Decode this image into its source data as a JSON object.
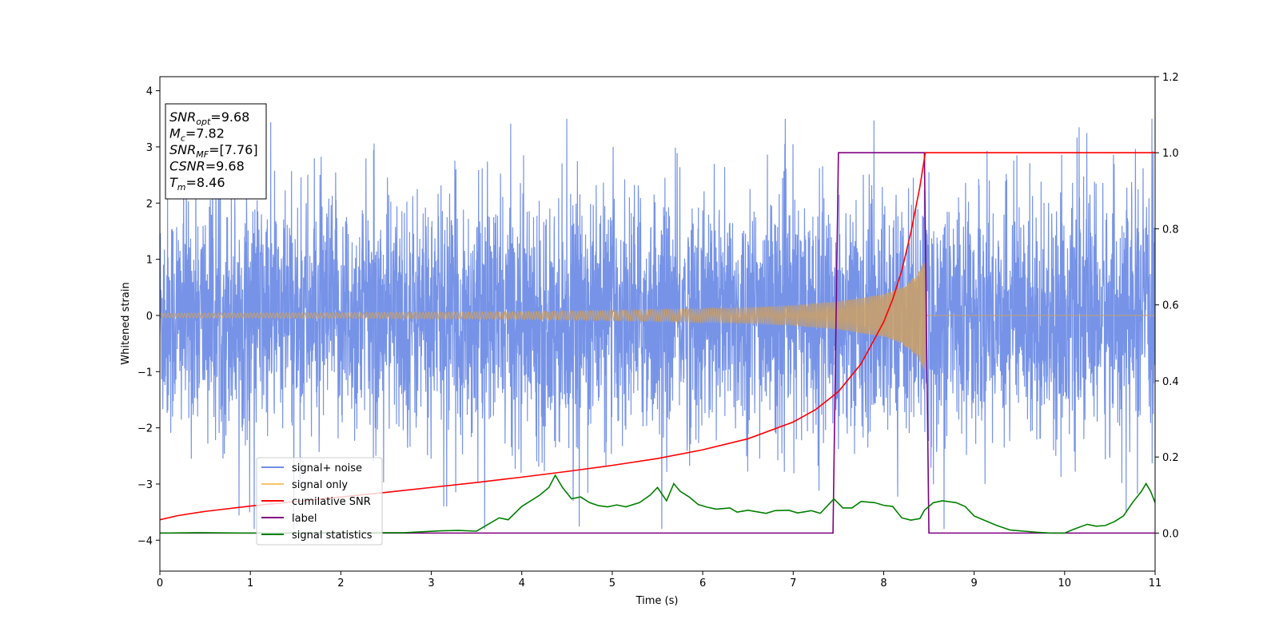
{
  "chart_data": {
    "type": "line",
    "xlabel": "Time (s)",
    "ylabel": "Whitened strain",
    "xlim": [
      0,
      11
    ],
    "ylim_left": [
      -4.55,
      4.25
    ],
    "ylim_right": [
      -0.1,
      1.2
    ],
    "x_ticks": [
      "0",
      "1",
      "2",
      "3",
      "4",
      "5",
      "6",
      "7",
      "8",
      "9",
      "10",
      "11"
    ],
    "y_left_ticks": [
      "4",
      "3",
      "2",
      "1",
      "0",
      "−1",
      "−2",
      "−3",
      "−4"
    ],
    "y_left_tick_values": [
      4,
      3,
      2,
      1,
      0,
      -1,
      -2,
      -3,
      -4
    ],
    "y_right_ticks": [
      "1.2",
      "1.0",
      "0.8",
      "0.6",
      "0.4",
      "0.2",
      "0.0"
    ],
    "y_right_tick_values": [
      1.2,
      1.0,
      0.8,
      0.6,
      0.4,
      0.2,
      0.0
    ],
    "annotation": {
      "lines": [
        {
          "label": "SNR",
          "sub": "opt",
          "value": "=9.68"
        },
        {
          "label": "M",
          "sub": "c",
          "value": "=7.82"
        },
        {
          "label": "SNR",
          "sub": "MF",
          "value": "=[7.76]"
        },
        {
          "label": "CSNR",
          "sub": "",
          "value": "=9.68"
        },
        {
          "label": "T",
          "sub": "m",
          "value": "=8.46"
        }
      ]
    },
    "legend": {
      "placement": "lower-left",
      "entries": [
        {
          "name": "signal+ noise",
          "color": "#6f8de6"
        },
        {
          "name": "signal only",
          "color": "#f5c46a"
        },
        {
          "name": "cumilative SNR",
          "color": "#ff0000"
        },
        {
          "name": "label",
          "color": "#800080"
        },
        {
          "name": "signal statistics",
          "color": "#008000"
        }
      ]
    },
    "series": [
      {
        "name": "signal+ noise",
        "axis": "left",
        "description_only_style": "dense noise",
        "color": "#6f8de6",
        "x_range": [
          0,
          11
        ],
        "typical_amplitude": 1.6,
        "peak_amplitude": 3.5
      },
      {
        "name": "signal only",
        "axis": "left",
        "color": "#f5c46a",
        "x_range": [
          0,
          8.46
        ],
        "amplitude_envelope": [
          [
            0,
            0.04
          ],
          [
            2,
            0.05
          ],
          [
            4,
            0.07
          ],
          [
            5,
            0.09
          ],
          [
            6,
            0.12
          ],
          [
            6.5,
            0.14
          ],
          [
            7,
            0.18
          ],
          [
            7.5,
            0.25
          ],
          [
            8,
            0.38
          ],
          [
            8.2,
            0.5
          ],
          [
            8.35,
            0.7
          ],
          [
            8.46,
            1.0
          ]
        ]
      },
      {
        "name": "cumilative SNR",
        "axis": "right",
        "color": "#ff0000",
        "points": [
          [
            0,
            0.035
          ],
          [
            0.2,
            0.046
          ],
          [
            0.5,
            0.057
          ],
          [
            1,
            0.071
          ],
          [
            1.5,
            0.083
          ],
          [
            2,
            0.095
          ],
          [
            2.5,
            0.107
          ],
          [
            3,
            0.12
          ],
          [
            3.5,
            0.133
          ],
          [
            4,
            0.147
          ],
          [
            4.5,
            0.162
          ],
          [
            5,
            0.178
          ],
          [
            5.5,
            0.196
          ],
          [
            6,
            0.219
          ],
          [
            6.5,
            0.248
          ],
          [
            7,
            0.292
          ],
          [
            7.25,
            0.325
          ],
          [
            7.5,
            0.372
          ],
          [
            7.75,
            0.445
          ],
          [
            8,
            0.555
          ],
          [
            8.1,
            0.615
          ],
          [
            8.2,
            0.69
          ],
          [
            8.3,
            0.79
          ],
          [
            8.4,
            0.91
          ],
          [
            8.46,
            1.0
          ],
          [
            11,
            1.0
          ]
        ]
      },
      {
        "name": "label",
        "axis": "right",
        "color": "#800080",
        "points": [
          [
            0,
            0.0
          ],
          [
            7.44,
            0.0
          ],
          [
            7.5,
            1.0
          ],
          [
            8.45,
            1.0
          ],
          [
            8.5,
            0.0
          ],
          [
            11,
            0.0
          ]
        ]
      },
      {
        "name": "signal statistics",
        "axis": "right",
        "color": "#008000",
        "points": [
          [
            0,
            0.0
          ],
          [
            0.4,
            0.001
          ],
          [
            1,
            0.0
          ],
          [
            2,
            0.001
          ],
          [
            2.7,
            0.001
          ],
          [
            3.1,
            0.006
          ],
          [
            3.3,
            0.007
          ],
          [
            3.5,
            0.005
          ],
          [
            3.75,
            0.04
          ],
          [
            3.85,
            0.035
          ],
          [
            4,
            0.07
          ],
          [
            4.1,
            0.085
          ],
          [
            4.2,
            0.1
          ],
          [
            4.3,
            0.12
          ],
          [
            4.37,
            0.152
          ],
          [
            4.45,
            0.12
          ],
          [
            4.55,
            0.09
          ],
          [
            4.65,
            0.095
          ],
          [
            4.75,
            0.08
          ],
          [
            4.85,
            0.072
          ],
          [
            4.95,
            0.069
          ],
          [
            5.05,
            0.074
          ],
          [
            5.15,
            0.069
          ],
          [
            5.3,
            0.08
          ],
          [
            5.42,
            0.1
          ],
          [
            5.5,
            0.12
          ],
          [
            5.6,
            0.085
          ],
          [
            5.68,
            0.13
          ],
          [
            5.75,
            0.11
          ],
          [
            5.85,
            0.095
          ],
          [
            5.95,
            0.075
          ],
          [
            6.05,
            0.068
          ],
          [
            6.15,
            0.063
          ],
          [
            6.3,
            0.066
          ],
          [
            6.38,
            0.055
          ],
          [
            6.5,
            0.06
          ],
          [
            6.7,
            0.052
          ],
          [
            6.8,
            0.059
          ],
          [
            6.95,
            0.06
          ],
          [
            7.05,
            0.053
          ],
          [
            7.2,
            0.059
          ],
          [
            7.3,
            0.052
          ],
          [
            7.45,
            0.09
          ],
          [
            7.55,
            0.066
          ],
          [
            7.65,
            0.066
          ],
          [
            7.75,
            0.083
          ],
          [
            7.9,
            0.08
          ],
          [
            8.0,
            0.073
          ],
          [
            8.1,
            0.07
          ],
          [
            8.2,
            0.04
          ],
          [
            8.3,
            0.034
          ],
          [
            8.4,
            0.038
          ],
          [
            8.45,
            0.06
          ],
          [
            8.55,
            0.08
          ],
          [
            8.65,
            0.085
          ],
          [
            8.8,
            0.08
          ],
          [
            8.9,
            0.07
          ],
          [
            9.0,
            0.045
          ],
          [
            9.1,
            0.035
          ],
          [
            9.25,
            0.02
          ],
          [
            9.4,
            0.008
          ],
          [
            9.55,
            0.005
          ],
          [
            9.7,
            0.002
          ],
          [
            9.85,
            0.0
          ],
          [
            10.0,
            0.0
          ],
          [
            10.1,
            0.01
          ],
          [
            10.25,
            0.023
          ],
          [
            10.35,
            0.018
          ],
          [
            10.45,
            0.02
          ],
          [
            10.55,
            0.03
          ],
          [
            10.65,
            0.045
          ],
          [
            10.75,
            0.08
          ],
          [
            10.85,
            0.11
          ],
          [
            10.9,
            0.13
          ],
          [
            10.95,
            0.11
          ],
          [
            11.0,
            0.08
          ]
        ]
      }
    ]
  }
}
